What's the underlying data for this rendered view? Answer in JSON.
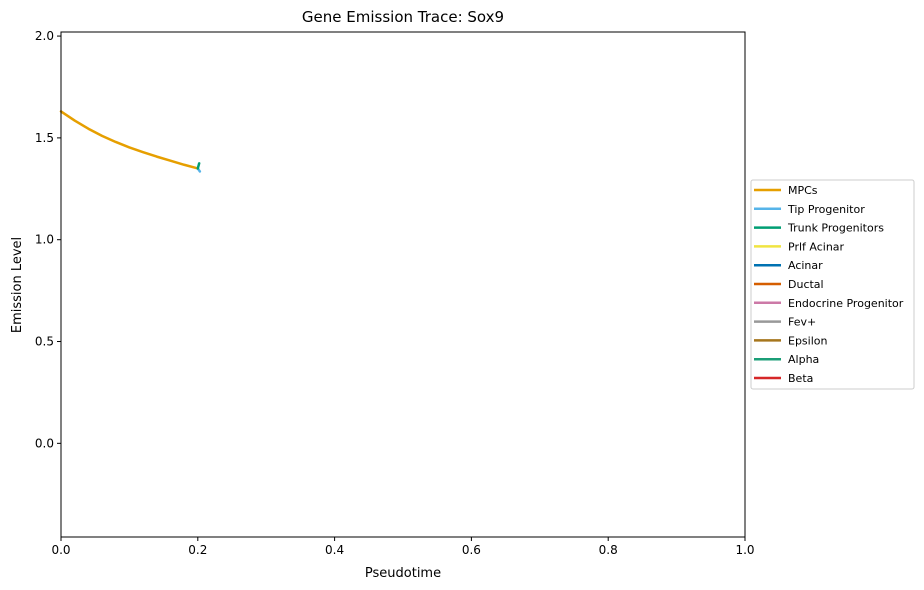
{
  "chart_data": {
    "type": "line",
    "title": "Gene Emission Trace: Sox9",
    "xlabel": "Pseudotime",
    "ylabel": "Emission Level",
    "xlim": [
      0.0,
      1.0
    ],
    "ylim": [
      -0.46,
      2.02
    ],
    "xticks": [
      "0.0",
      "0.2",
      "0.4",
      "0.6",
      "0.8",
      "1.0"
    ],
    "xtick_values": [
      0.0,
      0.2,
      0.4,
      0.6,
      0.8,
      1.0
    ],
    "yticks": [
      "0.0",
      "0.5",
      "1.0",
      "1.5",
      "2.0"
    ],
    "ytick_values": [
      0.0,
      0.5,
      1.0,
      1.5,
      2.0
    ],
    "grid": false,
    "legend_placement": "center-right, outside plot",
    "series": [
      {
        "name": "MPCs",
        "color": "#E69F00",
        "x": [
          0.0,
          0.02,
          0.04,
          0.06,
          0.08,
          0.1,
          0.12,
          0.14,
          0.16,
          0.18,
          0.2
        ],
        "y": [
          1.63,
          1.585,
          1.545,
          1.51,
          1.48,
          1.453,
          1.43,
          1.408,
          1.388,
          1.368,
          1.35
        ]
      },
      {
        "name": "Tip Progenitor",
        "color": "#56B4E9",
        "x": [
          0.2,
          0.203
        ],
        "y": [
          1.35,
          1.335
        ]
      },
      {
        "name": "Trunk Progenitors",
        "color": "#009E73",
        "x": [
          0.2,
          0.202
        ],
        "y": [
          1.35,
          1.375
        ]
      },
      {
        "name": "Prlf Acinar",
        "color": "#F0E442",
        "x": [],
        "y": []
      },
      {
        "name": "Acinar",
        "color": "#0072B2",
        "x": [],
        "y": []
      },
      {
        "name": "Ductal",
        "color": "#D55E00",
        "x": [],
        "y": []
      },
      {
        "name": "Endocrine Progenitor",
        "color": "#CC79A7",
        "x": [],
        "y": []
      },
      {
        "name": "Fev+",
        "color": "#999999",
        "x": [],
        "y": []
      },
      {
        "name": "Epsilon",
        "color": "#A6761D",
        "x": [],
        "y": []
      },
      {
        "name": "Alpha",
        "color": "#1B9E77",
        "x": [],
        "y": []
      },
      {
        "name": "Beta",
        "color": "#D62728",
        "x": [],
        "y": []
      }
    ]
  }
}
